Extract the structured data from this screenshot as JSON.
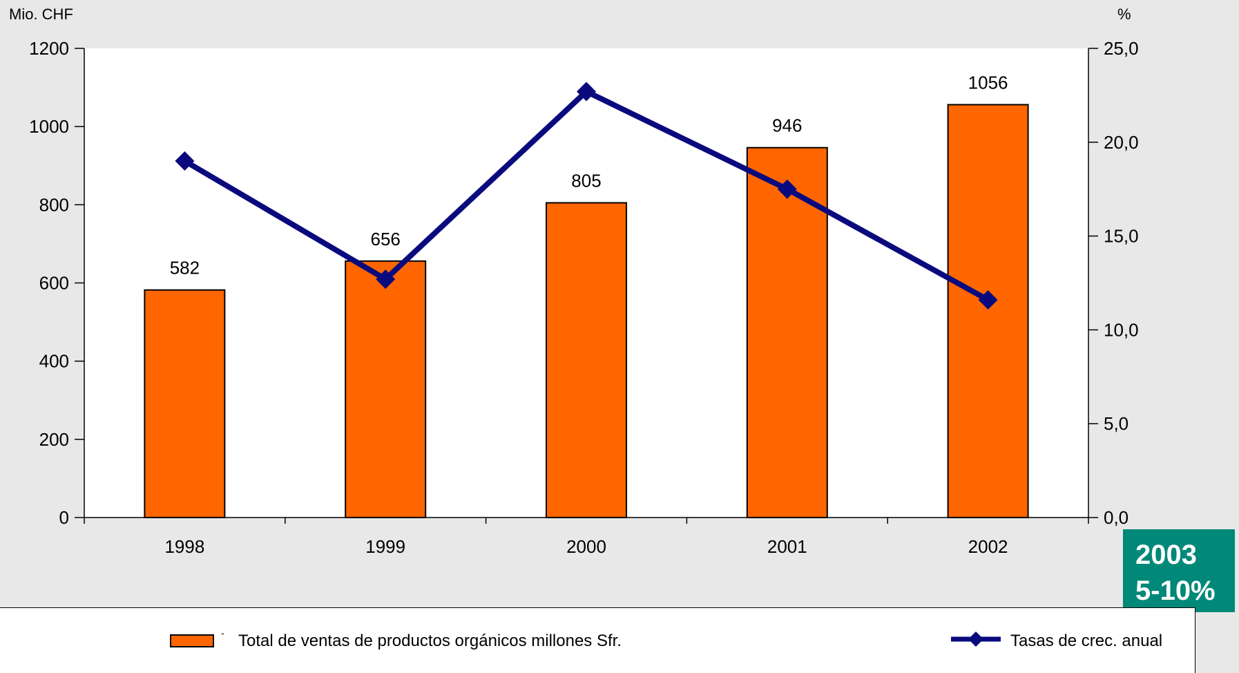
{
  "units": {
    "left": "Mio. CHF",
    "right": "%"
  },
  "callout": {
    "year": "2003",
    "range": "5-10%"
  },
  "legend": {
    "bar_label": "Total de ventas de productos orgánicos millones Sfr.",
    "bar_marker": "-",
    "line_label": "Tasas de crec. anual"
  },
  "colors": {
    "bar": "#ff6600",
    "line": "#0a0a7e",
    "callout": "#008878",
    "background": "#e8e8e8",
    "plot": "#ffffff"
  },
  "chart_data": {
    "type": "bar",
    "categories": [
      "1998",
      "1999",
      "2000",
      "2001",
      "2002"
    ],
    "series": [
      {
        "name": "Total de ventas de productos orgánicos millones Sfr.",
        "type": "bar",
        "axis": "left",
        "values": [
          582,
          656,
          805,
          946,
          1056
        ],
        "labels": [
          "582",
          "656",
          "805",
          "946",
          "1056"
        ]
      },
      {
        "name": "Tasas de crec. anual",
        "type": "line",
        "axis": "right",
        "values": [
          19.0,
          12.7,
          22.7,
          17.5,
          11.6
        ]
      }
    ],
    "y_left": {
      "label": "Mio. CHF",
      "range": [
        0,
        1200
      ],
      "ticks": [
        "0",
        "200",
        "400",
        "600",
        "800",
        "1000",
        "1200"
      ]
    },
    "y_right": {
      "label": "%",
      "range": [
        0,
        25
      ],
      "ticks": [
        "0,0",
        "5,0",
        "10,0",
        "15,0",
        "20,0",
        "25,0"
      ]
    },
    "grid": false,
    "legend_position": "bottom"
  }
}
